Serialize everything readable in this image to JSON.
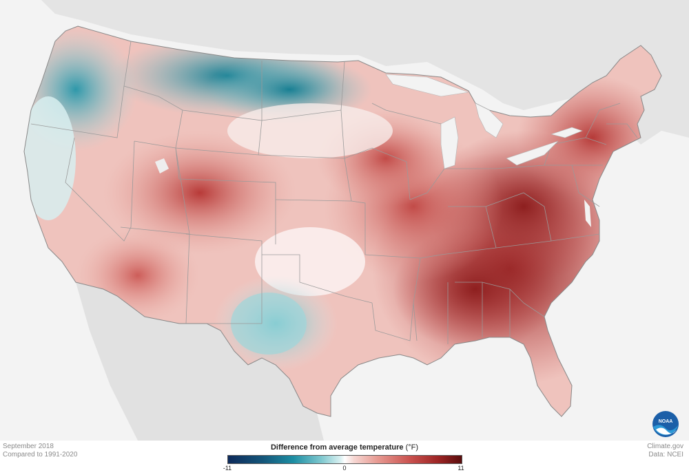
{
  "footer": {
    "period": "September 2018",
    "baseline": "Compared to 1991-2020",
    "site": "Climate.gov",
    "source": "Data: NCEI"
  },
  "legend": {
    "title": "Difference from average temperature",
    "unit": "(°F)",
    "min_label": "-11",
    "mid_label": "0",
    "max_label": "11",
    "range": [
      -11,
      11
    ],
    "colors": {
      "cold_extreme": "#0d2a5a",
      "cool": "#1d8ea3",
      "neutral": "#ffffff",
      "warm": "#c9514e",
      "hot_extreme": "#5a0d0d"
    }
  },
  "logo": {
    "text": "NOAA",
    "icon": "noaa-logo-icon"
  },
  "colors": {
    "background": "#f3f3f3",
    "land_outside": "#e3e3e3",
    "state_borders": "#9a9a9a"
  }
}
